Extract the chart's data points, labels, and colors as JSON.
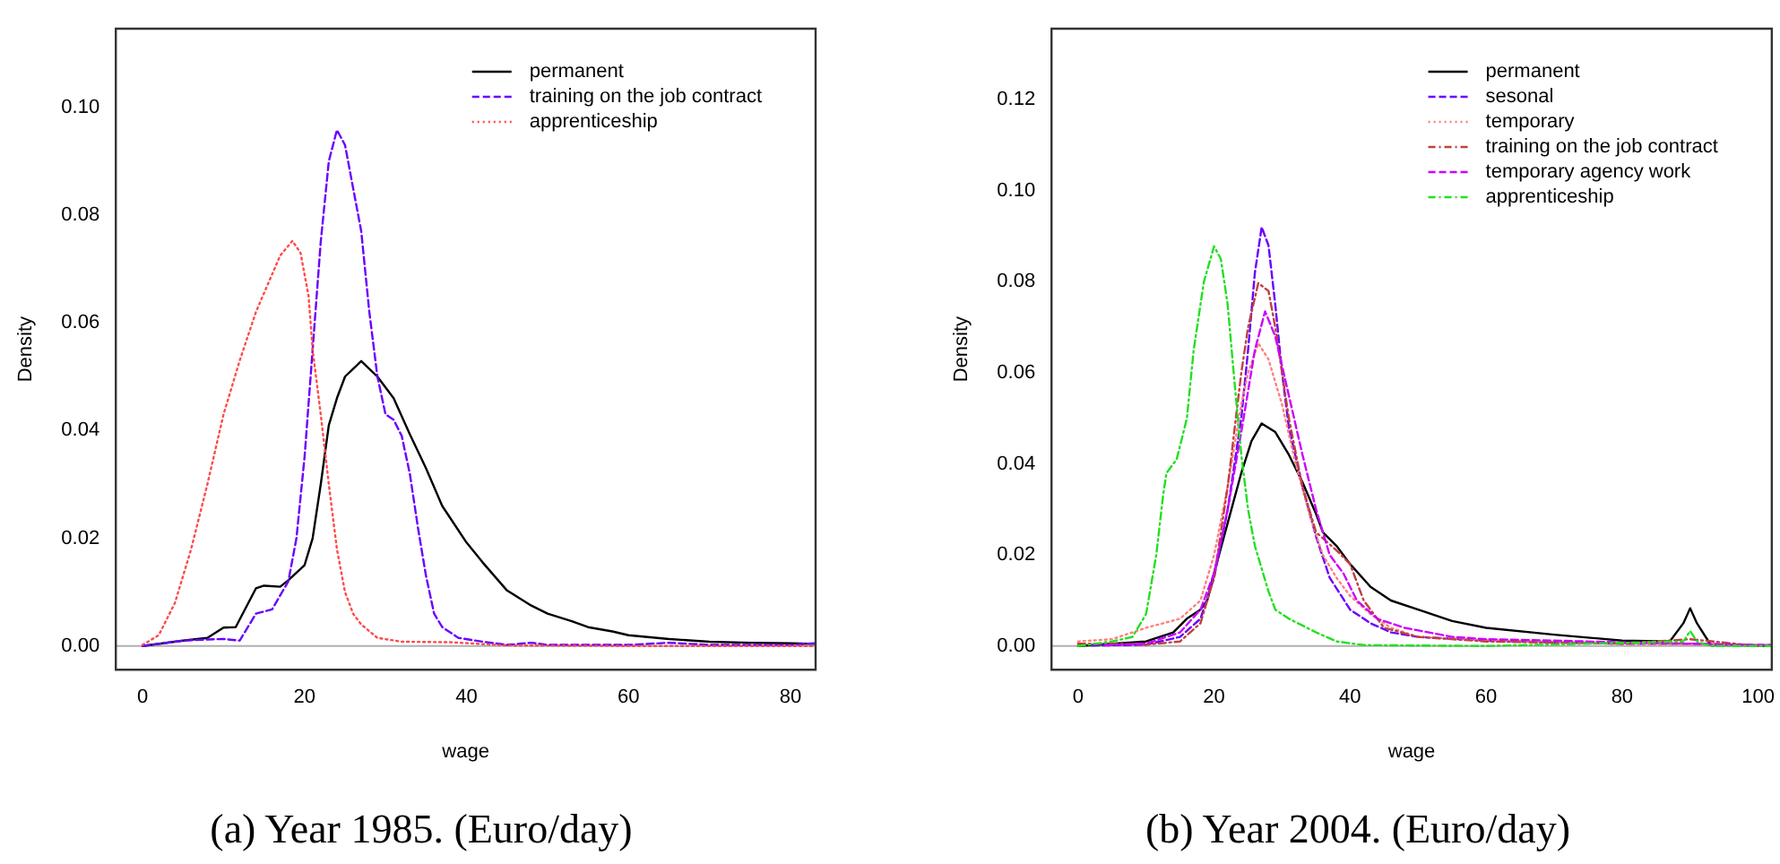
{
  "chart_data": [
    {
      "type": "line",
      "xlabel": "wage",
      "ylabel": "Density",
      "xlim": [
        -3.3,
        83.1
      ],
      "ylim": [
        -0.0044,
        0.1146
      ],
      "xticks": [
        0,
        20,
        40,
        60,
        80
      ],
      "yticks": [
        {
          "value": 0,
          "label": "0.00"
        },
        {
          "value": 0.02,
          "label": "0.02"
        },
        {
          "value": 0.04,
          "label": "0.04"
        },
        {
          "value": 0.06,
          "label": "0.06"
        },
        {
          "value": 0.08,
          "label": "0.08"
        },
        {
          "value": 0.1,
          "label": "0.10"
        }
      ],
      "grid": false,
      "legend": "top right",
      "marker": "none",
      "ref_lines": [
        {
          "axis": "y",
          "value": 0,
          "color": "#b0b0b0"
        }
      ],
      "annotations": [
        "(a)  Year 1985. (Euro/day)"
      ],
      "series": [
        {
          "name": "permanent",
          "color": "#000000",
          "line_style": "solid",
          "x": [
            0,
            5,
            8,
            10,
            11.5,
            14,
            15,
            17,
            18,
            20,
            21,
            22,
            23,
            24,
            25,
            27,
            29,
            31,
            33,
            35,
            37,
            40,
            42,
            45,
            48,
            50,
            53,
            55,
            58,
            60,
            65,
            70,
            75,
            80,
            83
          ],
          "values": [
            0,
            0.001,
            0.0015,
            0.0034,
            0.0035,
            0.0107,
            0.0112,
            0.011,
            0.0122,
            0.015,
            0.02,
            0.03,
            0.041,
            0.046,
            0.05,
            0.0529,
            0.05,
            0.046,
            0.0393,
            0.033,
            0.026,
            0.0192,
            0.0155,
            0.0103,
            0.0075,
            0.006,
            0.0046,
            0.0035,
            0.0027,
            0.002,
            0.0013,
            0.0008,
            0.0006,
            0.0005,
            0.0004
          ]
        },
        {
          "name": "training on the job contract",
          "color": "#6a00ff",
          "line_style": "dashed",
          "x": [
            0,
            5,
            8,
            10,
            12,
            14,
            16,
            18,
            19,
            20,
            21,
            22,
            23,
            24,
            25,
            26,
            27,
            28,
            29,
            30,
            31,
            32,
            33,
            34,
            35,
            36,
            37,
            39,
            42,
            45,
            48,
            50,
            60,
            65,
            70,
            80,
            83
          ],
          "values": [
            0,
            0.001,
            0.0012,
            0.0013,
            0.001,
            0.006,
            0.0068,
            0.012,
            0.02,
            0.035,
            0.055,
            0.075,
            0.09,
            0.0958,
            0.093,
            0.085,
            0.077,
            0.062,
            0.05,
            0.043,
            0.042,
            0.039,
            0.032,
            0.022,
            0.013,
            0.006,
            0.0035,
            0.0015,
            0.0008,
            0.0002,
            0.0006,
            0.0002,
            0.0002,
            0.0006,
            0.0002,
            0.0002,
            0.0005
          ]
        },
        {
          "name": "apprenticeship",
          "color": "#ff4a4a",
          "line_style": "dotted",
          "x": [
            0,
            2,
            4,
            6,
            8,
            10,
            12,
            14,
            16,
            17,
            18.5,
            19.5,
            20.5,
            21,
            22,
            23,
            24,
            25,
            26,
            27,
            29,
            32,
            38,
            45,
            60,
            83
          ],
          "values": [
            0.0002,
            0.002,
            0.008,
            0.018,
            0.03,
            0.043,
            0.053,
            0.062,
            0.069,
            0.0725,
            0.0752,
            0.073,
            0.065,
            0.055,
            0.043,
            0.03,
            0.018,
            0.01,
            0.006,
            0.004,
            0.0015,
            0.0008,
            0.0007,
            0.0001,
            0,
            0
          ]
        }
      ]
    },
    {
      "type": "line",
      "xlabel": "wage",
      "ylabel": "Density",
      "xlim": [
        -3.9,
        102
      ],
      "ylim": [
        -0.0052,
        0.1356
      ],
      "xticks": [
        0,
        20,
        40,
        60,
        80,
        100
      ],
      "yticks": [
        {
          "value": 0,
          "label": "0.00"
        },
        {
          "value": 0.02,
          "label": "0.02"
        },
        {
          "value": 0.04,
          "label": "0.04"
        },
        {
          "value": 0.06,
          "label": "0.06"
        },
        {
          "value": 0.08,
          "label": "0.08"
        },
        {
          "value": 0.1,
          "label": "0.10"
        },
        {
          "value": 0.12,
          "label": "0.12"
        }
      ],
      "grid": false,
      "legend": "top right",
      "marker": "none",
      "ref_lines": [
        {
          "axis": "y",
          "value": 0,
          "color": "#b0b0b0"
        }
      ],
      "annotations": [
        "(b)  Year 2004. (Euro/day)"
      ],
      "series": [
        {
          "name": "permanent",
          "color": "#000000",
          "line_style": "solid",
          "x": [
            0,
            5,
            10,
            14,
            16,
            17,
            18,
            19,
            20,
            22,
            24,
            25.5,
            27,
            29,
            31,
            33,
            35,
            36,
            38,
            40,
            43,
            46,
            50,
            55,
            60,
            70,
            80,
            87,
            89,
            90,
            91,
            93,
            100,
            102
          ],
          "values": [
            0,
            0.0005,
            0.001,
            0.003,
            0.006,
            0.007,
            0.008,
            0.01,
            0.016,
            0.027,
            0.038,
            0.045,
            0.0489,
            0.047,
            0.042,
            0.036,
            0.029,
            0.025,
            0.022,
            0.018,
            0.013,
            0.01,
            0.008,
            0.0055,
            0.004,
            0.0025,
            0.0012,
            0.001,
            0.005,
            0.0083,
            0.005,
            0.0003,
            0.0001,
            0
          ]
        },
        {
          "name": "sesonal",
          "color": "#6a00ff",
          "line_style": "dashed",
          "x": [
            2,
            10,
            15,
            18,
            20,
            22,
            24,
            25,
            26,
            27,
            28,
            29,
            30,
            31,
            33,
            35,
            37,
            40,
            43,
            46,
            50,
            60,
            70,
            80,
            90,
            100,
            102
          ],
          "values": [
            0.0001,
            0.0003,
            0.002,
            0.006,
            0.015,
            0.03,
            0.05,
            0.065,
            0.082,
            0.092,
            0.088,
            0.075,
            0.06,
            0.048,
            0.035,
            0.024,
            0.015,
            0.008,
            0.005,
            0.003,
            0.002,
            0.0012,
            0.0008,
            0.0005,
            0.0005,
            0.0002,
            0.0002
          ]
        },
        {
          "name": "temporary",
          "color": "#ff7f7f",
          "line_style": "dotted",
          "x": [
            0,
            5,
            10,
            15,
            18,
            20,
            22,
            24,
            25,
            26.5,
            28,
            30,
            32,
            34,
            36,
            38,
            40,
            43,
            46,
            50,
            60,
            80,
            100,
            102
          ],
          "values": [
            0.001,
            0.0015,
            0.004,
            0.006,
            0.01,
            0.02,
            0.035,
            0.053,
            0.06,
            0.0665,
            0.063,
            0.053,
            0.04,
            0.029,
            0.02,
            0.015,
            0.011,
            0.007,
            0.004,
            0.002,
            0.0012,
            0.0005,
            0.0002,
            0.0002
          ]
        },
        {
          "name": "training on the job contract",
          "color": "#c04040",
          "line_style": "dashdot",
          "x": [
            0,
            5,
            10,
            15,
            18,
            20,
            22,
            24,
            25,
            26.5,
            28,
            29,
            31,
            33,
            35,
            38,
            40,
            42,
            45,
            50,
            60,
            80,
            90,
            100,
            102
          ],
          "values": [
            0.0005,
            0.0005,
            0.0003,
            0.001,
            0.005,
            0.015,
            0.035,
            0.06,
            0.07,
            0.0797,
            0.078,
            0.07,
            0.05,
            0.035,
            0.025,
            0.021,
            0.018,
            0.01,
            0.004,
            0.002,
            0.001,
            0.0005,
            0.0015,
            0,
            0
          ]
        },
        {
          "name": "temporary agency work",
          "color": "#cc00ff",
          "line_style": "dashed",
          "x": [
            4,
            10,
            15,
            18,
            20,
            22,
            24,
            26,
            27.5,
            29,
            31,
            33,
            35,
            37,
            39,
            41,
            44,
            48,
            55,
            60,
            70,
            80,
            90,
            100,
            102
          ],
          "values": [
            0.0002,
            0.0005,
            0.003,
            0.008,
            0.016,
            0.03,
            0.047,
            0.065,
            0.0735,
            0.068,
            0.055,
            0.042,
            0.03,
            0.02,
            0.016,
            0.01,
            0.006,
            0.004,
            0.002,
            0.0015,
            0.0012,
            0.0008,
            0.0005,
            0.0002,
            0.0002
          ]
        },
        {
          "name": "apprenticeship",
          "color": "#22e022",
          "line_style": "dashdot",
          "x": [
            0,
            5,
            8,
            10,
            11.5,
            12.5,
            13,
            14.5,
            16,
            17,
            18.5,
            20,
            21,
            22,
            23,
            24,
            25,
            26,
            28,
            29,
            31,
            33,
            35,
            38,
            42,
            60,
            89,
            90,
            91,
            93,
            100,
            102
          ],
          "values": [
            0,
            0.001,
            0.002,
            0.007,
            0.02,
            0.033,
            0.038,
            0.041,
            0.05,
            0.065,
            0.08,
            0.0878,
            0.085,
            0.075,
            0.058,
            0.042,
            0.03,
            0.022,
            0.012,
            0.008,
            0.006,
            0.0045,
            0.003,
            0.001,
            0.0002,
            0,
            0.001,
            0.0033,
            0.001,
            0,
            0,
            0
          ]
        }
      ]
    }
  ]
}
